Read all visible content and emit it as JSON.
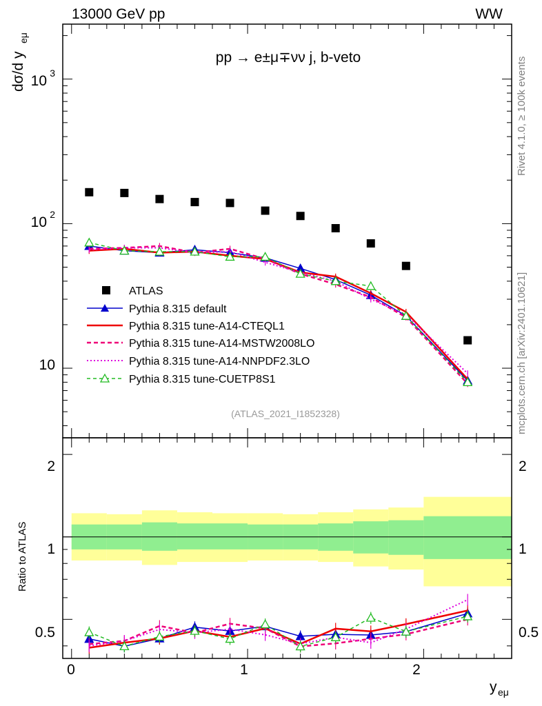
{
  "header": {
    "energy_label": "13000 GeV pp",
    "process_tag": "WW",
    "process_title": "pp → e±μ∓νν j, b-veto",
    "analysis_id": "(ATLAS_2021_I1852328)",
    "side_rivet": "Rivet 4.1.0, ≥ 100k events",
    "side_mcplots": "mcplots.cern.ch [arXiv:2401.10621]"
  },
  "axes": {
    "top_ylabel_main": "dσ/d y",
    "top_ylabel_sub": "eμ",
    "top_yticks": [
      "10",
      "10",
      "10"
    ],
    "top_ytick_exps": [
      "",
      "2",
      "3"
    ],
    "bottom_ylabel": "Ratio to ATLAS",
    "bottom_yticks": [
      "0.5",
      "1",
      "2"
    ],
    "xlabel_main": "y",
    "xlabel_sub": "eμ",
    "xticks": [
      "0",
      "1",
      "2"
    ]
  },
  "legend": {
    "atlas": "ATLAS",
    "default": "Pythia 8.315 default",
    "cteql1": "Pythia 8.315 tune-A14-CTEQL1",
    "mstw": "Pythia 8.315 tune-A14-MSTW2008LO",
    "nnpdf": "Pythia 8.315 tune-A14-NNPDF2.3LO",
    "cuetp8s1": "Pythia 8.315 tune-CUETP8S1"
  },
  "chart_data": {
    "type": "line",
    "title": "pp → e±μ∓νν j, b-veto",
    "xlabel": "y_eμ",
    "ylabel": "dσ/d y_eμ",
    "yscale": "log",
    "xlim": [
      -0.05,
      2.5
    ],
    "ylim": [
      3.3,
      2400
    ],
    "ratio_ylim": [
      0.36,
      2.3
    ],
    "x_bins": [
      0,
      0.2,
      0.4,
      0.6,
      0.8,
      1.0,
      1.2,
      1.4,
      1.6,
      1.8,
      2.0,
      2.5
    ],
    "x": [
      0.1,
      0.3,
      0.5,
      0.7,
      0.9,
      1.1,
      1.3,
      1.5,
      1.7,
      1.9,
      2.25
    ],
    "atlas": [
      165,
      163,
      148,
      141,
      139,
      123,
      113,
      93,
      73,
      51,
      15.6
    ],
    "band_inner": [
      [
        0.9,
        1.11
      ],
      [
        0.9,
        1.11
      ],
      [
        0.89,
        1.13
      ],
      [
        0.9,
        1.12
      ],
      [
        0.9,
        1.12
      ],
      [
        0.9,
        1.11
      ],
      [
        0.9,
        1.11
      ],
      [
        0.89,
        1.12
      ],
      [
        0.87,
        1.14
      ],
      [
        0.86,
        1.15
      ],
      [
        0.83,
        1.19
      ]
    ],
    "band_outer": [
      [
        0.82,
        1.22
      ],
      [
        0.82,
        1.21
      ],
      [
        0.79,
        1.25
      ],
      [
        0.81,
        1.23
      ],
      [
        0.81,
        1.22
      ],
      [
        0.82,
        1.22
      ],
      [
        0.82,
        1.21
      ],
      [
        0.81,
        1.23
      ],
      [
        0.78,
        1.26
      ],
      [
        0.76,
        1.28
      ],
      [
        0.66,
        1.4
      ]
    ],
    "series": [
      {
        "name": "Pythia 8.315 default",
        "values": [
          70,
          65,
          63,
          66,
          63,
          58,
          49,
          41,
          32,
          23,
          8.2
        ]
      },
      {
        "name": "Pythia 8.315 tune-A14-CTEQL1",
        "values": [
          65,
          67,
          63,
          64,
          60,
          57,
          46,
          43,
          33,
          24.5,
          8.4
        ]
      },
      {
        "name": "Pythia 8.315 tune-A14-MSTW2008LO",
        "values": [
          67,
          68,
          70,
          63,
          67,
          57,
          45,
          38,
          31,
          22.5,
          7.8
        ]
      },
      {
        "name": "Pythia 8.315 tune-A14-NNPDF2.3LO",
        "values": [
          66,
          68,
          68,
          63,
          64,
          54,
          46,
          40,
          30,
          23.5,
          9.2
        ]
      },
      {
        "name": "Pythia 8.315 tune-CUETP8S1",
        "values": [
          74,
          65,
          64,
          64,
          59,
          59,
          45,
          40,
          37,
          23,
          8.0
        ]
      }
    ]
  },
  "colors": {
    "atlas": "#000000",
    "default": "#0000cc",
    "cteql1": "#ee0000",
    "mstw": "#ee0077",
    "nnpdf": "#dd00dd",
    "cuetp8s1": "#22bb22",
    "band_inner": "#90ee90",
    "band_outer": "#ffff99"
  }
}
